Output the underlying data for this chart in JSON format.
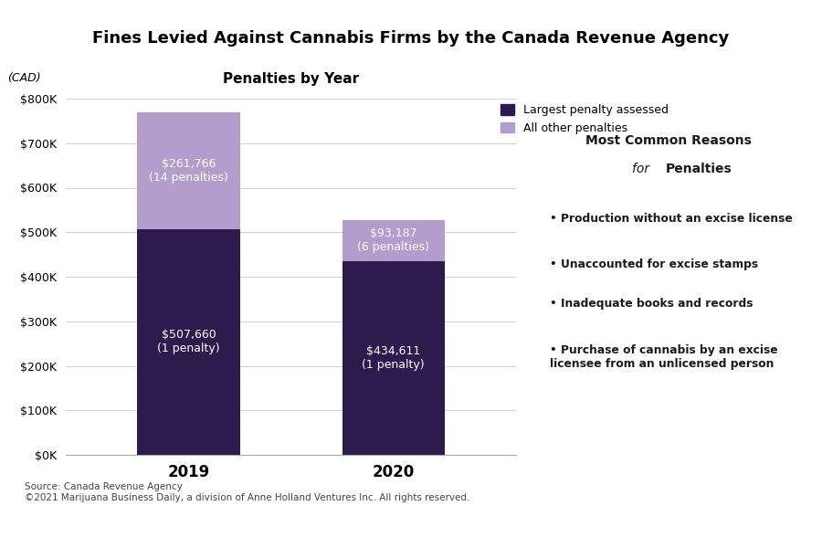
{
  "title": "Fines Levied Against Cannabis Firms by the Canada Revenue Agency",
  "subtitle": "Penalties by Year",
  "ylabel": "(CAD)",
  "years": [
    "2019",
    "2020"
  ],
  "largest_penalty": [
    507660,
    434611
  ],
  "other_penalties": [
    261766,
    93187
  ],
  "largest_penalty_labels": [
    "$507,660\n(1 penalty)",
    "$434,611\n(1 penalty)"
  ],
  "other_penalty_labels": [
    "$261,766\n(14 penalties)",
    "$93,187\n(6 penalties)"
  ],
  "color_largest": "#2d1b4e",
  "color_other": "#b39dcc",
  "yticks": [
    0,
    100000,
    200000,
    300000,
    400000,
    500000,
    600000,
    700000,
    800000
  ],
  "ytick_labels": [
    "$0K",
    "$100K",
    "$200K",
    "$300K",
    "$400K",
    "$500K",
    "$600K",
    "$700K",
    "$800K"
  ],
  "legend_labels": [
    "Largest penalty assessed",
    "All other penalties"
  ],
  "reasons_title_line1": "Most Common Reasons",
  "reasons_title_line2_normal": "for ",
  "reasons_title_line2_bold": "Penalties",
  "reasons": [
    "Production without an excise license",
    "Unaccounted for excise stamps",
    "Inadequate books and records",
    "Purchase of cannabis by an excise\nlicensee from an unlicensed person"
  ],
  "source_text": "Source: Canada Revenue Agency\n©2021 Marijuana Business Daily, a division of Anne Holland Ventures Inc. All rights reserved.",
  "bg_color": "#ffffff",
  "panel_bg_color": "#e8e8ee",
  "title_fontsize": 13,
  "subtitle_fontsize": 11,
  "bar_width": 0.5,
  "ylim": [
    0,
    800000
  ]
}
